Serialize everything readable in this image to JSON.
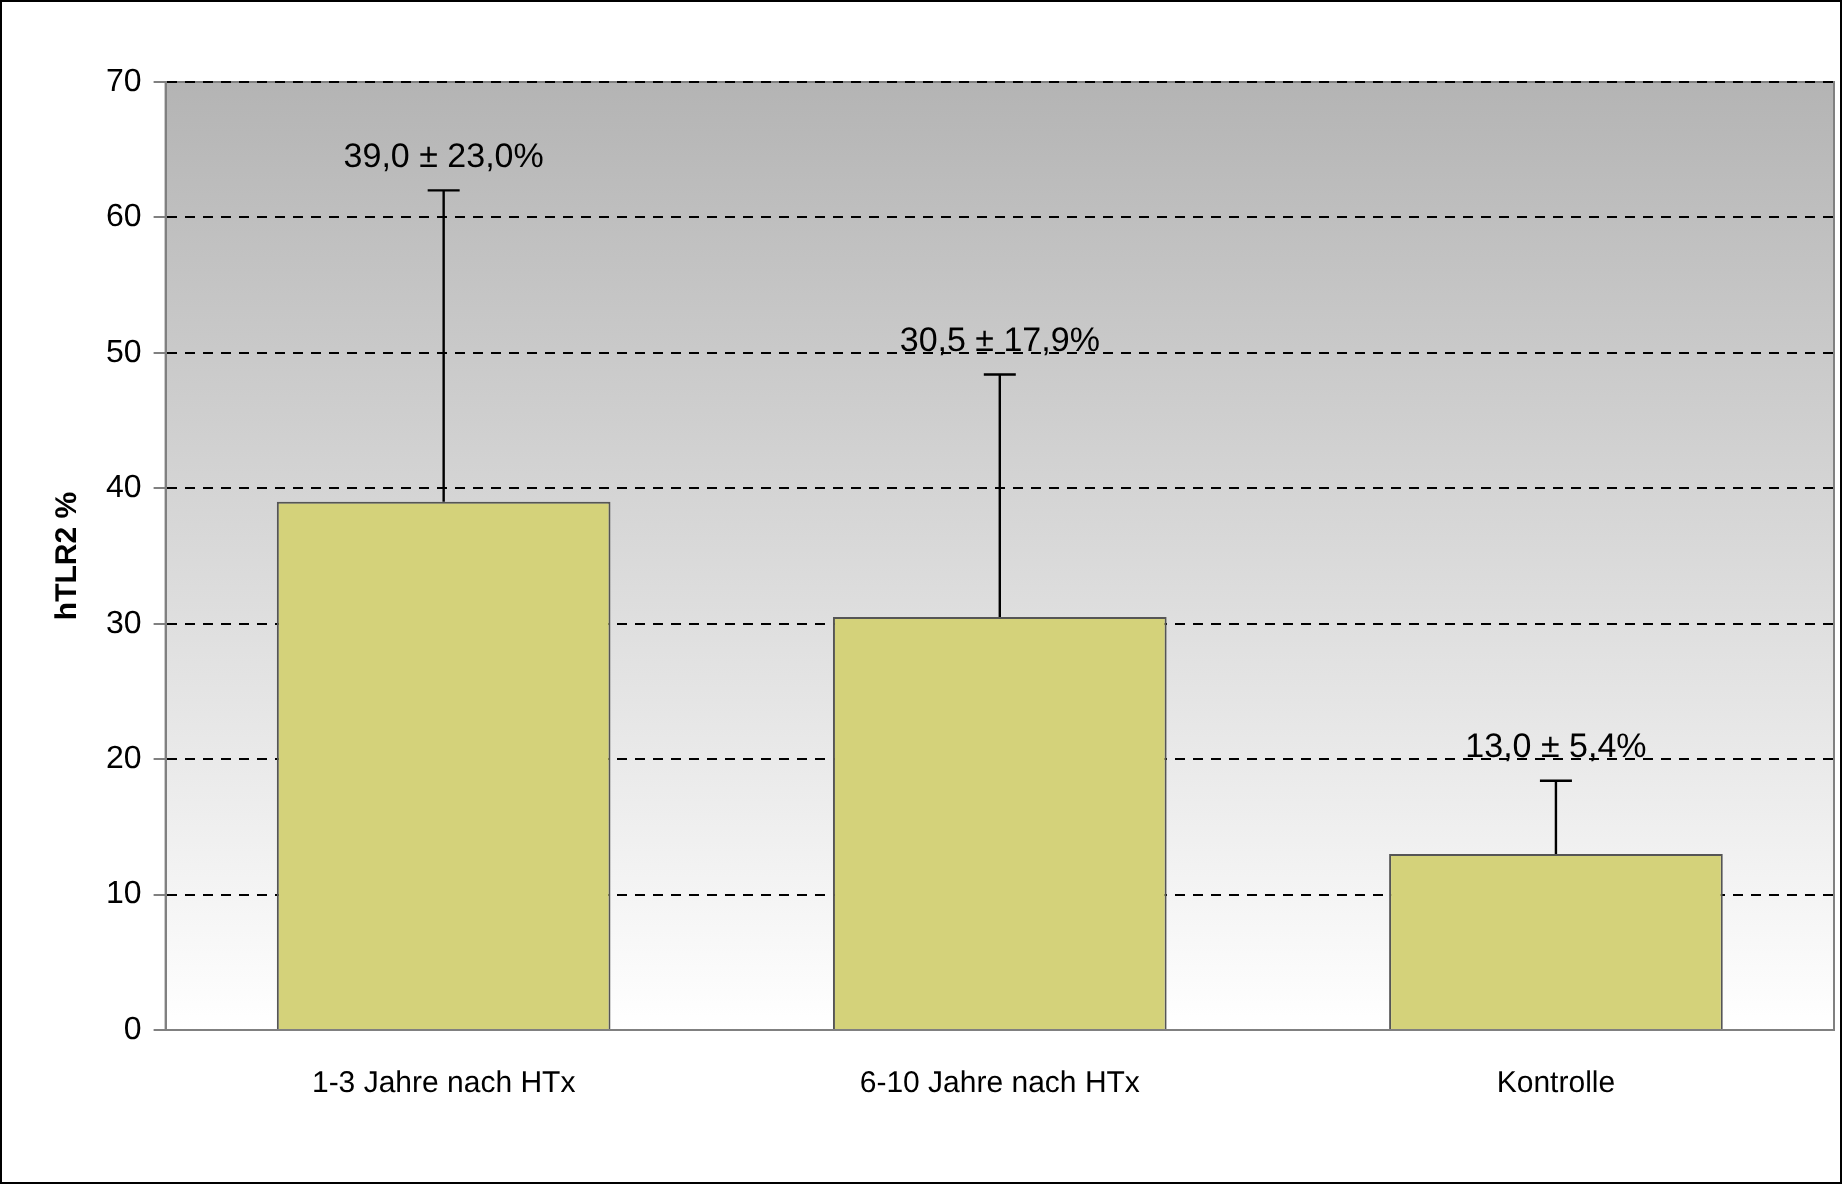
{
  "chart_data": {
    "type": "bar",
    "ylabel": "hTLR2 %",
    "categories": [
      "1-3 Jahre nach HTx",
      "6-10 Jahre nach HTx",
      "Kontrolle"
    ],
    "values": [
      39.0,
      30.5,
      13.0
    ],
    "errors": [
      [
        39.0,
        62.0
      ],
      [
        30.5,
        48.4
      ],
      [
        13.0,
        18.4
      ]
    ],
    "annotations": [
      {
        "text": "39,0 ± 23,0%",
        "x": "1-3 Jahre nach HTx",
        "y": 62.0
      },
      {
        "text": "30,5 ± 17,9%",
        "x": "6-10 Jahre nach HTx",
        "y": 48.4
      },
      {
        "text": "13,0 ± 5,4%",
        "x": "Kontrolle",
        "y": 18.4
      }
    ],
    "color": "#d4d27a",
    "ylim": [
      0,
      70
    ],
    "yticks": [
      0,
      10,
      20,
      30,
      40,
      50,
      60,
      70
    ],
    "grid": "y",
    "line_style": "dashed",
    "legend": false
  }
}
